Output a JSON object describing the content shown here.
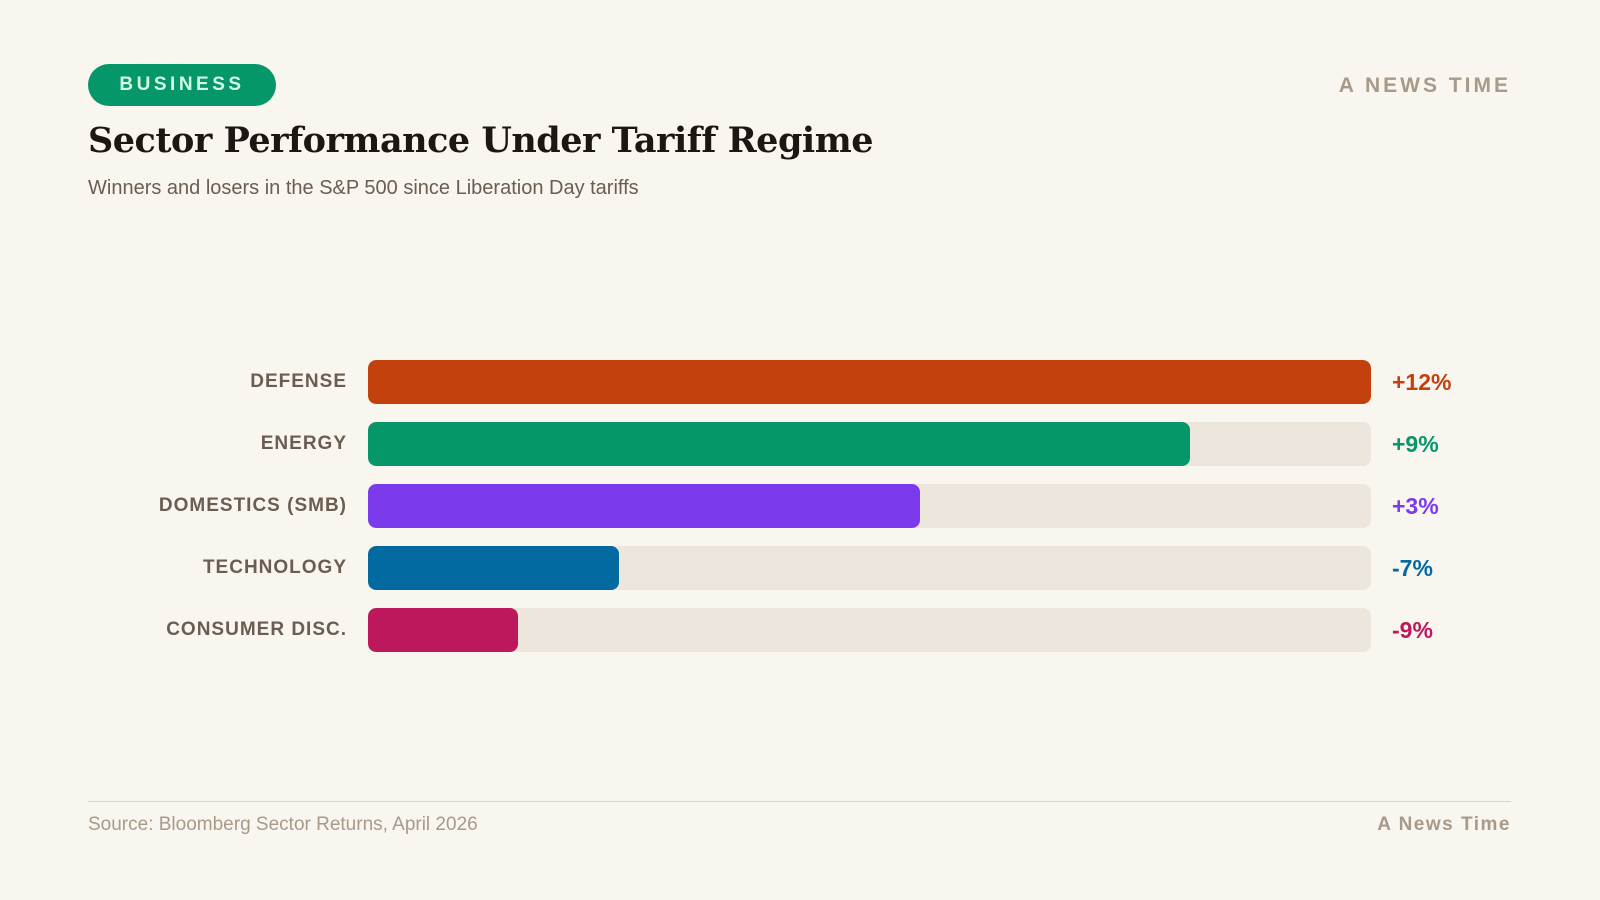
{
  "header": {
    "badge": "BUSINESS",
    "brand": "A NEWS TIME",
    "title": "Sector Performance Under Tariff Regime",
    "subtitle": "Winners and losers in the S&P 500 since Liberation Day tariffs"
  },
  "chart_data": {
    "type": "bar",
    "orientation": "horizontal",
    "title": "Sector Performance Under Tariff Regime",
    "subtitle": "Winners and losers in the S&P 500 since Liberation Day tariffs",
    "categories": [
      "DEFENSE",
      "ENERGY",
      "DOMESTICS (SMB)",
      "TECHNOLOGY",
      "CONSUMER DISC."
    ],
    "values": [
      12,
      9,
      3,
      -7,
      -9
    ],
    "value_labels": [
      "+12%",
      "+9%",
      "+3%",
      "-7%",
      "-9%"
    ],
    "bar_fill_fraction": [
      1.0,
      0.82,
      0.55,
      0.25,
      0.15
    ],
    "colors": [
      "#c2410c",
      "#05966a",
      "#7c3aed",
      "#0369a1",
      "#be185d"
    ],
    "track_color": "#ede6dd",
    "grid": false
  },
  "footer": {
    "source": "Source: Bloomberg Sector Returns, April 2026",
    "brand": "A News Time"
  }
}
